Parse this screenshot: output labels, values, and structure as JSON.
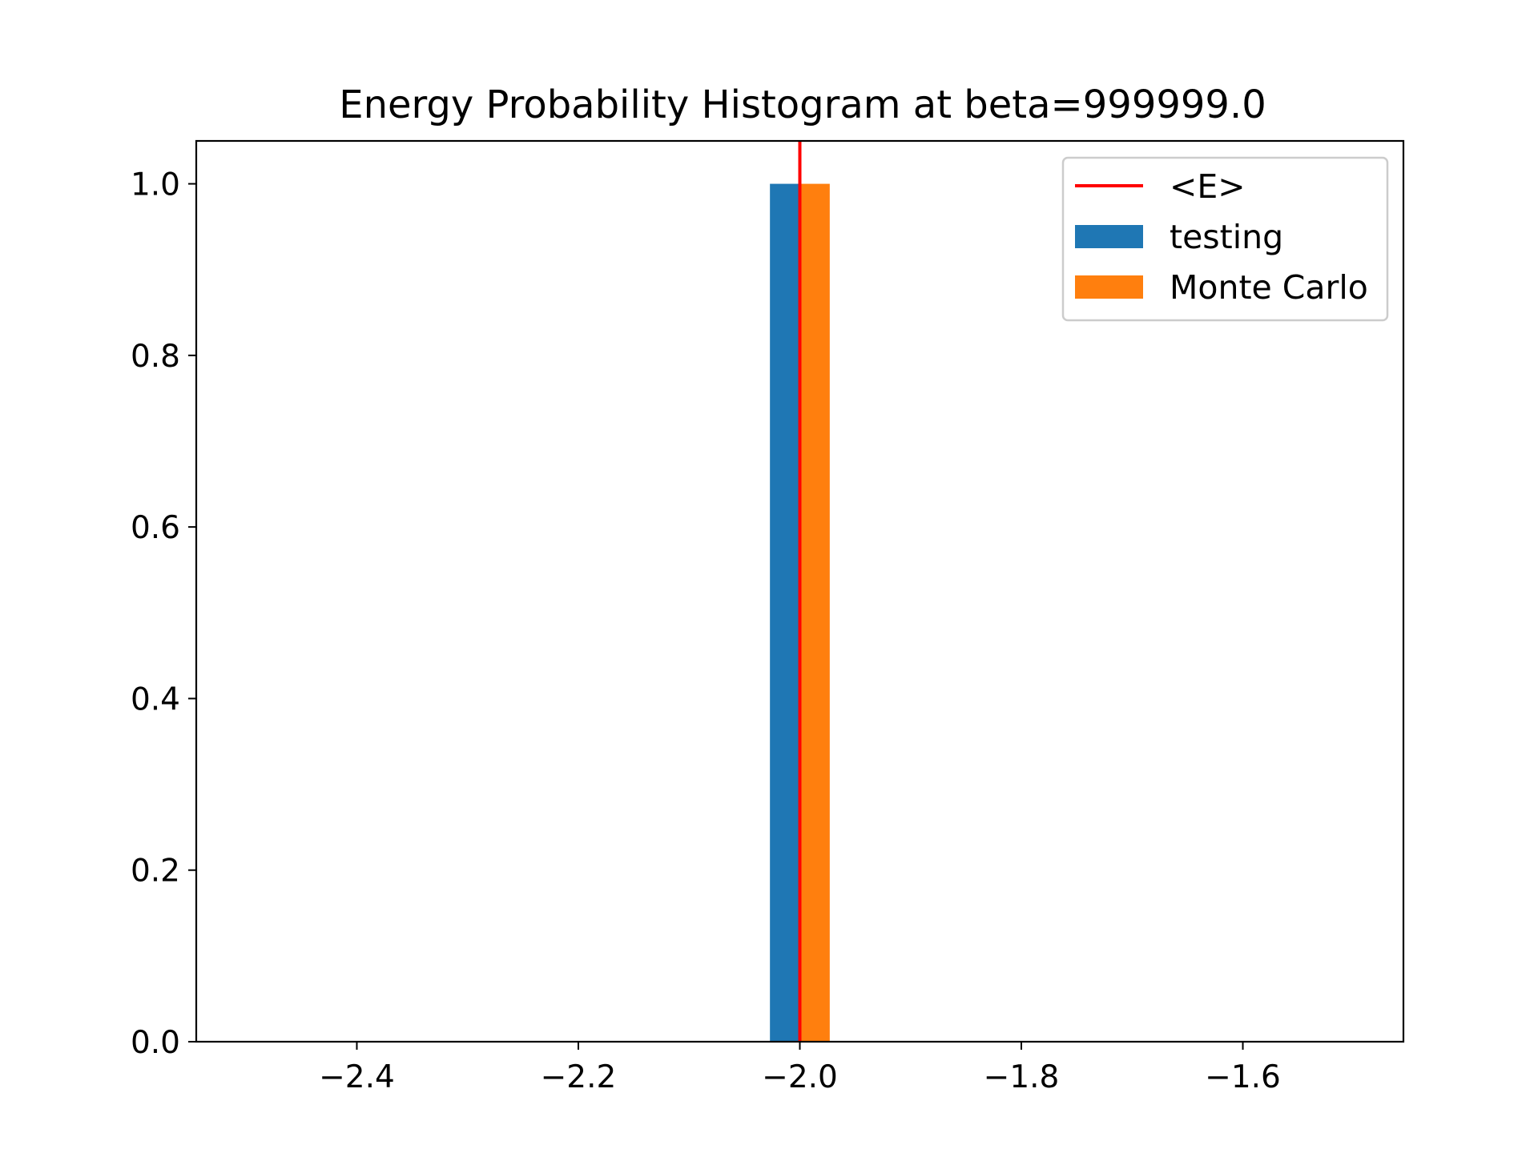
{
  "chart_data": {
    "type": "bar",
    "title": "Energy Probability Histogram at beta=999999.0",
    "xlabel": "",
    "ylabel": "",
    "xlim": [
      -2.545,
      -1.455
    ],
    "ylim": [
      0.0,
      1.05
    ],
    "xticks": [
      -2.4,
      -2.2,
      -2.0,
      -1.8,
      -1.6
    ],
    "xtick_labels": [
      "−2.4",
      "−2.2",
      "−2.0",
      "−1.8",
      "−1.6"
    ],
    "yticks": [
      0.0,
      0.2,
      0.4,
      0.6,
      0.8,
      1.0
    ],
    "ytick_labels": [
      "0.0",
      "0.2",
      "0.4",
      "0.6",
      "0.8",
      "1.0"
    ],
    "grid": false,
    "legend_position": "upper right",
    "series": [
      {
        "name": "testing",
        "kind": "bar",
        "x0": -2.027,
        "x1": -2.0,
        "value": 1.0,
        "color": "#1f77b4"
      },
      {
        "name": "Monte Carlo",
        "kind": "bar",
        "x0": -2.0,
        "x1": -1.973,
        "value": 1.0,
        "color": "#ff7f0e"
      },
      {
        "name": "<E>",
        "kind": "vline",
        "x": -2.0,
        "color": "#ff0000"
      }
    ],
    "legend": [
      {
        "label": "<E>",
        "kind": "line",
        "color": "#ff0000"
      },
      {
        "label": "testing",
        "kind": "patch",
        "color": "#1f77b4"
      },
      {
        "label": "Monte Carlo",
        "kind": "patch",
        "color": "#ff7f0e"
      }
    ]
  }
}
